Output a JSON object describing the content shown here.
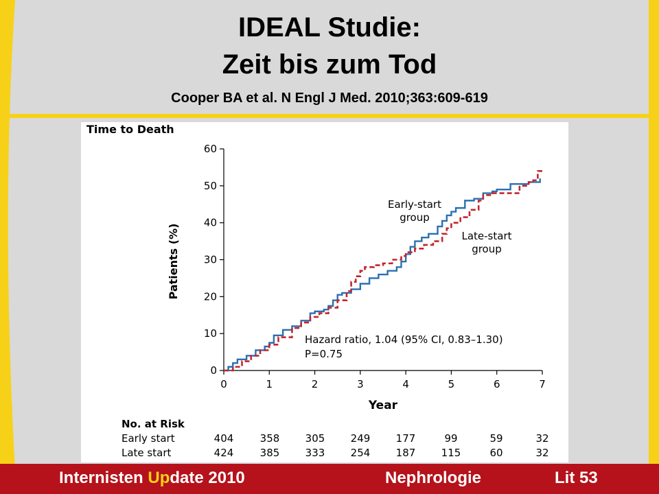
{
  "slide": {
    "title_line1": "IDEAL Studie:",
    "title_line2": "Zeit bis zum Tod",
    "citation": "Cooper BA et al. N Engl J Med. 2010;363:609-619"
  },
  "footer": {
    "left_pre": "Internisten ",
    "left_highlight": "Up",
    "left_post": "date 2010",
    "middle": "Nephrologie",
    "right": "Lit 53"
  },
  "colors": {
    "slide_background": "#d9d9d9",
    "accent_yellow": "#f7d117",
    "footer_red": "#b5121b",
    "early_start": "#2a6fb0",
    "late_start": "#c0272d"
  },
  "chart_data": {
    "type": "line",
    "title": "Time to Death",
    "xlabel": "Year",
    "ylabel": "Patients (%)",
    "xlim": [
      0,
      7
    ],
    "ylim": [
      0,
      60
    ],
    "x_ticks": [
      "0",
      "1",
      "2",
      "3",
      "4",
      "5",
      "6",
      "7"
    ],
    "y_ticks": [
      "0",
      "10",
      "20",
      "30",
      "40",
      "50",
      "60"
    ],
    "grid": false,
    "series": [
      {
        "name": "Early-start group",
        "label_lines": [
          "Early-start",
          "group"
        ],
        "style": "solid",
        "points": [
          [
            0,
            0
          ],
          [
            0.1,
            1
          ],
          [
            0.2,
            2
          ],
          [
            0.3,
            3
          ],
          [
            0.5,
            4
          ],
          [
            0.7,
            5.5
          ],
          [
            0.9,
            6.5
          ],
          [
            1.0,
            7.5
          ],
          [
            1.1,
            9.5
          ],
          [
            1.3,
            11
          ],
          [
            1.5,
            12
          ],
          [
            1.7,
            13.5
          ],
          [
            1.9,
            15.5
          ],
          [
            2.0,
            16
          ],
          [
            2.2,
            16.5
          ],
          [
            2.3,
            17.5
          ],
          [
            2.4,
            19
          ],
          [
            2.5,
            20.5
          ],
          [
            2.6,
            21
          ],
          [
            2.8,
            22
          ],
          [
            3.0,
            23.5
          ],
          [
            3.2,
            25
          ],
          [
            3.4,
            26
          ],
          [
            3.6,
            27
          ],
          [
            3.8,
            28
          ],
          [
            3.9,
            29.5
          ],
          [
            4.0,
            31.5
          ],
          [
            4.1,
            33.5
          ],
          [
            4.2,
            35
          ],
          [
            4.35,
            36
          ],
          [
            4.5,
            37
          ],
          [
            4.7,
            39
          ],
          [
            4.8,
            40.5
          ],
          [
            4.9,
            42
          ],
          [
            5.0,
            43
          ],
          [
            5.1,
            44
          ],
          [
            5.3,
            46
          ],
          [
            5.5,
            46.5
          ],
          [
            5.7,
            48
          ],
          [
            5.9,
            48.5
          ],
          [
            6.0,
            49
          ],
          [
            6.2,
            49
          ],
          [
            6.3,
            50.5
          ],
          [
            6.5,
            50.5
          ],
          [
            6.6,
            50.5
          ],
          [
            6.7,
            51
          ],
          [
            6.9,
            51
          ],
          [
            6.95,
            52
          ]
        ]
      },
      {
        "name": "Late-start group",
        "label_lines": [
          "Late-start",
          "group"
        ],
        "style": "dashed",
        "points": [
          [
            0,
            0
          ],
          [
            0.2,
            1
          ],
          [
            0.4,
            2.5
          ],
          [
            0.6,
            4
          ],
          [
            0.8,
            5.5
          ],
          [
            1.0,
            7
          ],
          [
            1.2,
            9
          ],
          [
            1.5,
            11.5
          ],
          [
            1.7,
            13
          ],
          [
            1.9,
            14.5
          ],
          [
            2.1,
            15.5
          ],
          [
            2.3,
            17
          ],
          [
            2.5,
            19
          ],
          [
            2.7,
            21.5
          ],
          [
            2.8,
            24
          ],
          [
            2.9,
            25.5
          ],
          [
            3.0,
            27
          ],
          [
            3.1,
            28
          ],
          [
            3.3,
            28.5
          ],
          [
            3.5,
            29
          ],
          [
            3.7,
            30
          ],
          [
            3.9,
            31
          ],
          [
            4.0,
            32
          ],
          [
            4.2,
            33
          ],
          [
            4.4,
            34
          ],
          [
            4.6,
            35
          ],
          [
            4.8,
            37
          ],
          [
            4.9,
            38.5
          ],
          [
            5.0,
            40
          ],
          [
            5.2,
            41.5
          ],
          [
            5.4,
            43.5
          ],
          [
            5.6,
            46
          ],
          [
            5.7,
            47.5
          ],
          [
            5.9,
            48
          ],
          [
            6.1,
            48
          ],
          [
            6.3,
            48
          ],
          [
            6.5,
            50
          ],
          [
            6.7,
            51
          ],
          [
            6.8,
            51.5
          ],
          [
            6.9,
            54
          ],
          [
            7.0,
            54
          ]
        ]
      }
    ],
    "annotations": [
      "Hazard ratio, 1.04 (95% CI, 0.83–1.30)",
      "P=0.75"
    ],
    "risk_table": {
      "title": "No. at Risk",
      "rows": [
        {
          "label": "Early start",
          "values": [
            "404",
            "358",
            "305",
            "249",
            "177",
            "99",
            "59",
            "32"
          ]
        },
        {
          "label": "Late start",
          "values": [
            "424",
            "385",
            "333",
            "254",
            "187",
            "115",
            "60",
            "32"
          ]
        }
      ]
    }
  }
}
